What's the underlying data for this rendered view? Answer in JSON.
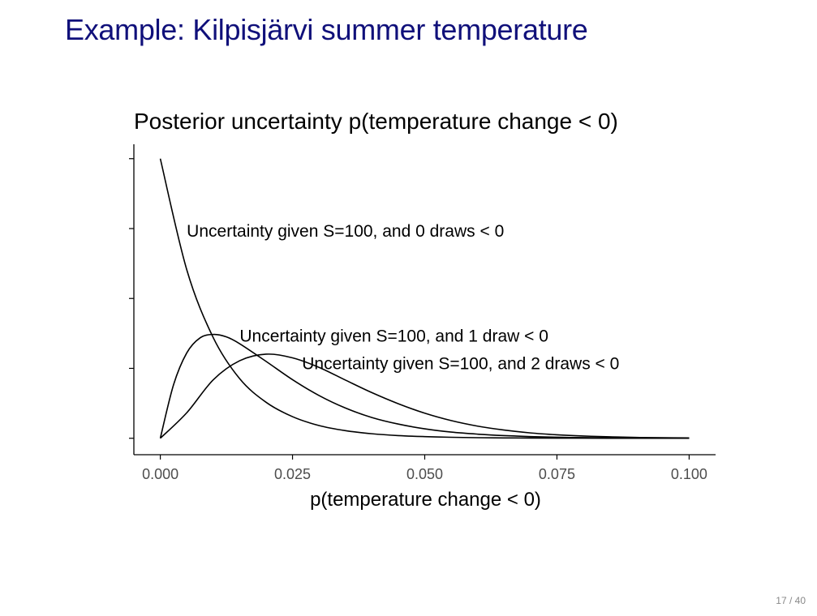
{
  "slide": {
    "title": "Example: Kilpisjärvi summer temperature",
    "page_number": "17 / 40"
  },
  "chart_data": {
    "type": "line",
    "title": "Posterior uncertainty p(temperature change < 0)",
    "xlabel": "p(temperature change < 0)",
    "ylabel": "",
    "xlim": [
      -0.005,
      0.105
    ],
    "ylim": [
      -0.8,
      14.3
    ],
    "x_ticks": [
      0.0,
      0.025,
      0.05,
      0.075,
      0.1
    ],
    "x_tick_labels": [
      "0.000",
      "0.025",
      "0.050",
      "0.075",
      "0.100"
    ],
    "y_ticks": [
      0,
      3.4,
      6.8,
      10.2,
      13.6
    ],
    "y_tick_labels": [
      "",
      "",
      "",
      "",
      ""
    ],
    "grid": false,
    "series": [
      {
        "name": "Uncertainty given S=100, and 0 draws < 0",
        "x": [
          0.0,
          0.005,
          0.01,
          0.015,
          0.02,
          0.025,
          0.03,
          0.035,
          0.04,
          0.045,
          0.05,
          0.055,
          0.06,
          0.065,
          0.07,
          0.075,
          0.08,
          0.085,
          0.09,
          0.095,
          0.1
        ],
        "y": [
          13.6,
          8.2,
          4.9,
          2.9,
          1.75,
          1.05,
          0.62,
          0.37,
          0.22,
          0.13,
          0.08,
          0.048,
          0.028,
          0.017,
          0.01,
          0.006,
          0.004,
          0.002,
          0.001,
          0.001,
          0.0
        ]
      },
      {
        "name": "Uncertainty given S=100, and 1 draw < 0",
        "x": [
          0.0,
          0.0025,
          0.005,
          0.0075,
          0.01,
          0.0125,
          0.015,
          0.02,
          0.025,
          0.03,
          0.035,
          0.04,
          0.045,
          0.05,
          0.055,
          0.06,
          0.065,
          0.07,
          0.075,
          0.08,
          0.085,
          0.09,
          0.095,
          0.1
        ],
        "y": [
          0.0,
          2.6,
          4.15,
          4.88,
          5.05,
          4.93,
          4.6,
          3.74,
          2.85,
          2.08,
          1.47,
          1.01,
          0.69,
          0.46,
          0.3,
          0.2,
          0.13,
          0.08,
          0.05,
          0.03,
          0.02,
          0.01,
          0.005,
          0.0
        ]
      },
      {
        "name": "Uncertainty given S=100, and 2 draws < 0",
        "x": [
          0.0,
          0.005,
          0.01,
          0.015,
          0.02,
          0.025,
          0.03,
          0.035,
          0.04,
          0.045,
          0.05,
          0.055,
          0.06,
          0.065,
          0.07,
          0.075,
          0.08,
          0.085,
          0.09,
          0.095,
          0.1
        ],
        "y": [
          0.0,
          1.24,
          2.84,
          3.77,
          4.09,
          3.91,
          3.45,
          2.83,
          2.22,
          1.68,
          1.22,
          0.86,
          0.59,
          0.4,
          0.26,
          0.17,
          0.11,
          0.07,
          0.04,
          0.025,
          0.015
        ]
      }
    ],
    "annotations": [
      {
        "text": "Uncertainty given S=100, and 0 draws < 0",
        "x": 0.005,
        "y": 9.8
      },
      {
        "text": "Uncertainty given S=100, and 1 draw < 0",
        "x": 0.015,
        "y": 4.7
      },
      {
        "text": "Uncertainty given S=100, and 2 draws < 0",
        "x": 0.0268,
        "y": 3.35
      }
    ]
  }
}
